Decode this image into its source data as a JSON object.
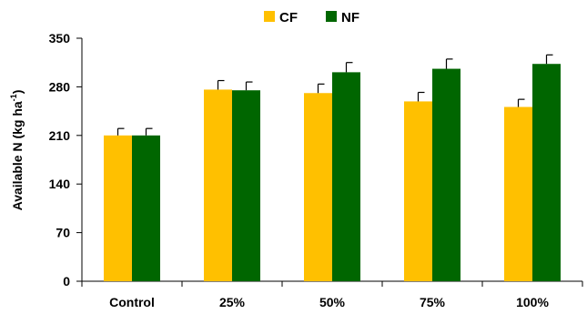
{
  "chart_data": {
    "type": "bar",
    "title": "",
    "xlabel": "",
    "ylabel": "Available N (kg ha",
    "ylabel_superscript": "-1",
    "ylabel_suffix": ")",
    "categories": [
      "Control",
      "25%",
      "50%",
      "75%",
      "100%"
    ],
    "series": [
      {
        "name": "CF",
        "color": "#FFC000",
        "values": [
          210,
          276,
          271,
          259,
          251
        ],
        "errors": [
          10,
          13,
          13,
          13,
          11
        ]
      },
      {
        "name": "NF",
        "color": "#006600",
        "values": [
          210,
          275,
          301,
          306,
          313
        ],
        "errors": [
          10,
          12,
          14,
          14,
          13
        ]
      }
    ],
    "ylim": [
      0,
      350
    ],
    "yticks": [
      0,
      70,
      140,
      210,
      280,
      350
    ],
    "grid": false,
    "legend_position": "top-center"
  }
}
